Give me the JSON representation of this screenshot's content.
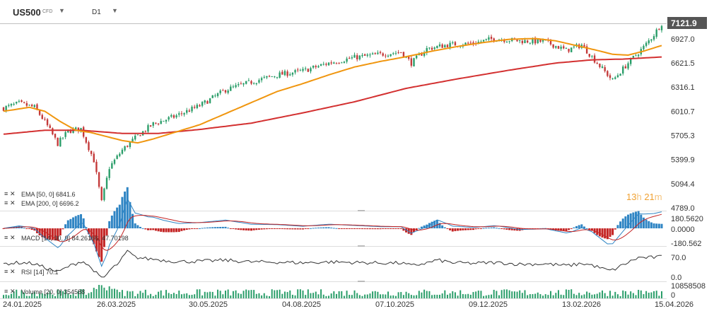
{
  "header": {
    "symbol": "US500",
    "instrument_type": "CFD",
    "timeframe": "D1"
  },
  "countdown": {
    "hours": "13",
    "h_unit": "h",
    "minutes": "21",
    "m_unit": "m"
  },
  "colors": {
    "ema50": "#f0960f",
    "ema200": "#d33030",
    "candle_up": "#2b9e6a",
    "candle_down": "#c43a3a",
    "price_badge": "#555555",
    "macd_hist_up": "#2f85c4",
    "macd_hist_down": "#c42424",
    "rsi_line": "#333333",
    "volume": "#2b9e6a"
  },
  "chart_data": {
    "type": "candlestick",
    "x_dates": [
      "24.01.2025",
      "26.03.2025",
      "30.05.2025",
      "04.08.2025",
      "07.10.2025",
      "09.12.2025",
      "13.02.2026",
      "15.04.2026"
    ],
    "price_ticks": [
      "7121.9",
      "6927.0",
      "6621.5",
      "6316.1",
      "6010.7",
      "5705.3",
      "5399.9",
      "5094.4",
      "4789.0"
    ],
    "y_range": [
      4789.0,
      7121.9
    ],
    "last_price": "7121.9",
    "price_path": [
      [
        0,
        6050
      ],
      [
        6,
        6110
      ],
      [
        12,
        6060
      ],
      [
        16,
        5880
      ],
      [
        21,
        5600
      ],
      [
        25,
        5760
      ],
      [
        30,
        5790
      ],
      [
        35,
        5390
      ],
      [
        38,
        4860
      ],
      [
        41,
        5300
      ],
      [
        46,
        5520
      ],
      [
        52,
        5700
      ],
      [
        58,
        5850
      ],
      [
        66,
        5940
      ],
      [
        76,
        6080
      ],
      [
        86,
        6280
      ],
      [
        96,
        6380
      ],
      [
        106,
        6470
      ],
      [
        116,
        6520
      ],
      [
        126,
        6620
      ],
      [
        136,
        6690
      ],
      [
        146,
        6730
      ],
      [
        154,
        6760
      ],
      [
        158,
        6620
      ],
      [
        164,
        6800
      ],
      [
        172,
        6850
      ],
      [
        182,
        6870
      ],
      [
        190,
        6930
      ],
      [
        200,
        6900
      ],
      [
        210,
        6890
      ],
      [
        218,
        6780
      ],
      [
        224,
        6850
      ],
      [
        230,
        6620
      ],
      [
        236,
        6400
      ],
      [
        242,
        6620
      ],
      [
        248,
        6820
      ],
      [
        252,
        6980
      ],
      [
        255,
        7121.9
      ]
    ],
    "series": [
      {
        "name": "EMA [50, 0]",
        "last": "6841.6",
        "points": [
          [
            0,
            6010
          ],
          [
            10,
            6060
          ],
          [
            16,
            6010
          ],
          [
            22,
            5880
          ],
          [
            28,
            5770
          ],
          [
            34,
            5740
          ],
          [
            40,
            5690
          ],
          [
            46,
            5640
          ],
          [
            52,
            5610
          ],
          [
            58,
            5660
          ],
          [
            66,
            5740
          ],
          [
            76,
            5840
          ],
          [
            86,
            5980
          ],
          [
            96,
            6120
          ],
          [
            106,
            6260
          ],
          [
            116,
            6360
          ],
          [
            126,
            6470
          ],
          [
            136,
            6570
          ],
          [
            146,
            6640
          ],
          [
            156,
            6700
          ],
          [
            166,
            6770
          ],
          [
            176,
            6830
          ],
          [
            186,
            6880
          ],
          [
            196,
            6920
          ],
          [
            206,
            6930
          ],
          [
            214,
            6900
          ],
          [
            222,
            6840
          ],
          [
            230,
            6780
          ],
          [
            236,
            6730
          ],
          [
            242,
            6720
          ],
          [
            248,
            6770
          ],
          [
            255,
            6841.6
          ]
        ]
      },
      {
        "name": "EMA [200, 0]",
        "last": "6696.2",
        "points": [
          [
            0,
            5720
          ],
          [
            16,
            5770
          ],
          [
            30,
            5770
          ],
          [
            46,
            5730
          ],
          [
            60,
            5730
          ],
          [
            76,
            5780
          ],
          [
            96,
            5860
          ],
          [
            116,
            5990
          ],
          [
            136,
            6130
          ],
          [
            156,
            6300
          ],
          [
            176,
            6420
          ],
          [
            196,
            6530
          ],
          [
            214,
            6620
          ],
          [
            228,
            6660
          ],
          [
            240,
            6670
          ],
          [
            255,
            6696.2
          ]
        ]
      }
    ],
    "macd": {
      "label": "MACD [14, 30, 9] 84.26166, 47.70198",
      "ticks": [
        "180.5620",
        "0.0000",
        "-180.562"
      ]
    },
    "rsi": {
      "label": "RSI [14] 70.1",
      "ticks": [
        "70.0",
        "0.0"
      ]
    },
    "volume": {
      "label": "Volume [20, 0] 354588",
      "ticks": [
        "10858508",
        "0"
      ]
    }
  }
}
